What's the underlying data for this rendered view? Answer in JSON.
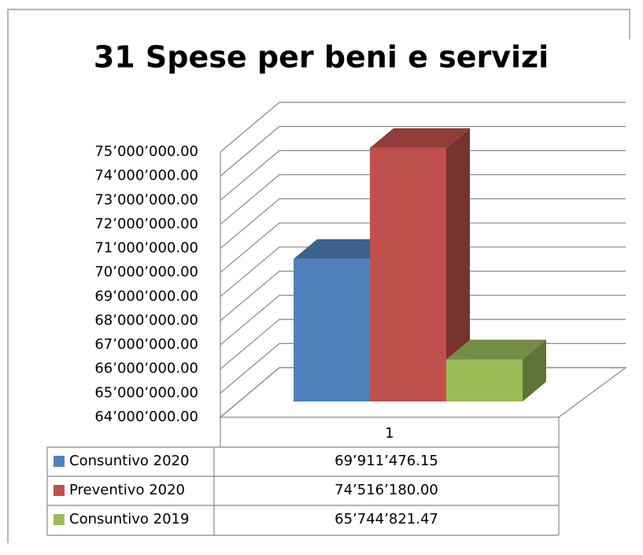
{
  "chart_data": {
    "type": "bar",
    "title": "31 Spese per beni e servizi",
    "categories": [
      "1"
    ],
    "series": [
      {
        "name": "Consuntivo 2020",
        "color": "#4f81bd",
        "values": [
          69911476.15
        ],
        "value_labels": [
          "69’911’476.15"
        ]
      },
      {
        "name": "Preventivo 2020",
        "color": "#c0504d",
        "values": [
          74516180.0
        ],
        "value_labels": [
          "74’516’180.00"
        ]
      },
      {
        "name": "Consuntivo 2019",
        "color": "#9bbb59",
        "values": [
          65744821.47
        ],
        "value_labels": [
          "65’744’821.47"
        ]
      }
    ],
    "ylim": [
      64000000,
      75000000
    ],
    "yticks": [
      {
        "value": 64000000,
        "label": "64’000’000.00"
      },
      {
        "value": 65000000,
        "label": "65’000’000.00"
      },
      {
        "value": 66000000,
        "label": "66’000’000.00"
      },
      {
        "value": 67000000,
        "label": "67’000’000.00"
      },
      {
        "value": 68000000,
        "label": "68’000’000.00"
      },
      {
        "value": 69000000,
        "label": "69’000’000.00"
      },
      {
        "value": 70000000,
        "label": "70’000’000.00"
      },
      {
        "value": 71000000,
        "label": "71’000’000.00"
      },
      {
        "value": 72000000,
        "label": "72’000’000.00"
      },
      {
        "value": 73000000,
        "label": "73’000’000.00"
      },
      {
        "value": 74000000,
        "label": "74’000’000.00"
      },
      {
        "value": 75000000,
        "label": "75’000’000.00"
      }
    ],
    "grid": true
  }
}
